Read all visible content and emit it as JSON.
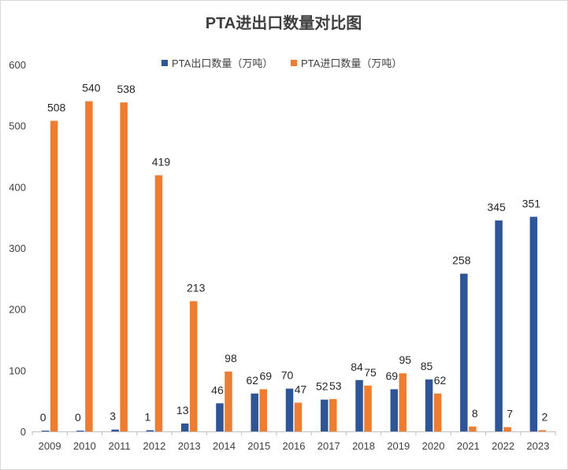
{
  "chart_data": {
    "type": "bar",
    "title": "PTA进出口数量对比图",
    "xlabel": "",
    "ylabel": "",
    "ylim": [
      0,
      600
    ],
    "yticks": [
      0,
      100,
      200,
      300,
      400,
      500,
      600
    ],
    "grid": false,
    "legend_position": "top",
    "categories": [
      "2009",
      "2010",
      "2011",
      "2012",
      "2013",
      "2014",
      "2015",
      "2016",
      "2017",
      "2018",
      "2019",
      "2020",
      "2021",
      "2022",
      "2023"
    ],
    "series": [
      {
        "name": "PTA出口数量（万吨）",
        "color": "#2F5597",
        "values": [
          0,
          0,
          3,
          1,
          13,
          46,
          62,
          70,
          52,
          84,
          69,
          85,
          258,
          345,
          351
        ],
        "labels": [
          "0",
          "0",
          "3",
          "1",
          "13",
          "46",
          "62",
          "70",
          "52",
          "84",
          "69",
          "85",
          "258",
          "345",
          "351"
        ]
      },
      {
        "name": "PTA进口数量（万吨）",
        "color": "#ED7D31",
        "values": [
          508,
          540,
          538,
          419,
          213,
          98,
          69,
          47,
          53,
          75,
          95,
          62,
          8,
          7,
          2
        ],
        "labels": [
          "508",
          "540",
          "538",
          "419",
          "213",
          "98",
          "69",
          "47",
          "53",
          "75",
          "95",
          "62",
          "8",
          "7",
          "2"
        ]
      }
    ]
  }
}
